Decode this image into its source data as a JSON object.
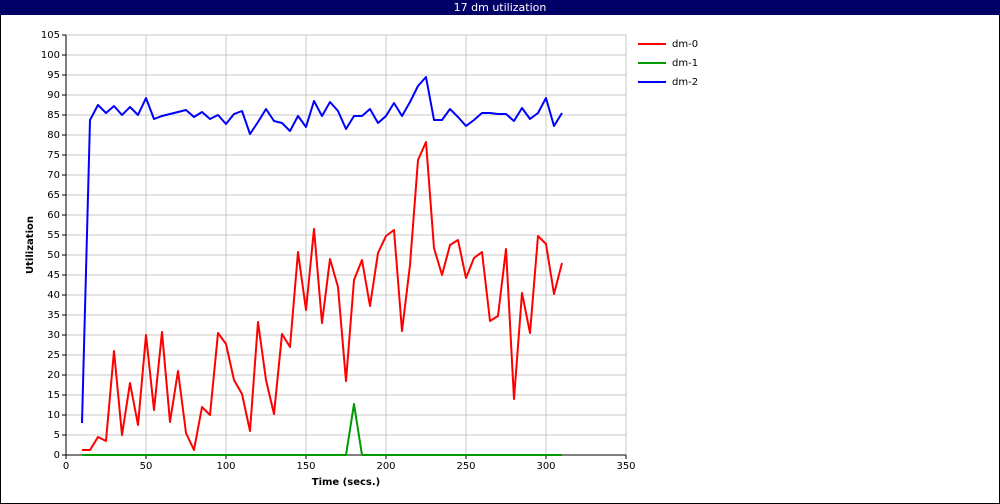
{
  "chart_data": {
    "type": "line",
    "title": "17 dm utilization",
    "x_label": "Time (secs.)",
    "y_label": "Utilization",
    "x": [
      10,
      15,
      20,
      25,
      30,
      35,
      40,
      45,
      50,
      55,
      60,
      65,
      70,
      75,
      80,
      85,
      90,
      95,
      100,
      105,
      110,
      115,
      120,
      125,
      130,
      135,
      140,
      145,
      150,
      155,
      160,
      165,
      170,
      175,
      180,
      185,
      190,
      195,
      200,
      205,
      210,
      215,
      220,
      225,
      230,
      235,
      240,
      245,
      250,
      255,
      260,
      265,
      270,
      275,
      280,
      285,
      290,
      295,
      300,
      305,
      310
    ],
    "series": [
      {
        "name": "dm-0",
        "color": "#ff0000",
        "values": [
          1.25,
          1.25,
          4.5,
          3.5,
          26,
          5,
          18,
          7.5,
          30,
          11.25,
          30.75,
          8.25,
          21,
          5.5,
          1.25,
          12,
          10,
          30.5,
          27.75,
          18.75,
          15.25,
          6,
          33.25,
          18.75,
          10.25,
          30.25,
          27,
          50.75,
          36.25,
          56.5,
          33,
          49,
          42,
          18.5,
          43.75,
          48.75,
          37.25,
          50.5,
          54.75,
          56.25,
          31,
          47.5,
          73.75,
          78.25,
          51.75,
          45,
          52.5,
          53.75,
          44.25,
          49.25,
          50.75,
          33.5,
          34.75,
          51.5,
          14,
          40.5,
          30.5,
          54.75,
          52.75,
          40.25,
          48
        ]
      },
      {
        "name": "dm-1",
        "color": "#009900",
        "values": [
          0,
          0,
          0,
          0,
          0,
          0,
          0,
          0,
          0,
          0,
          0,
          0,
          0,
          0,
          0,
          0,
          0,
          0,
          0,
          0,
          0,
          0,
          0,
          0,
          0,
          0,
          0,
          0,
          0,
          0,
          0,
          0,
          0,
          0,
          12.75,
          0,
          0,
          0,
          0,
          0,
          0,
          0,
          0,
          0,
          0,
          0,
          0,
          0,
          0,
          0,
          0,
          0,
          0,
          0,
          0,
          0,
          0,
          0,
          0,
          0,
          0
        ]
      },
      {
        "name": "dm-2",
        "color": "#0000ff",
        "values": [
          8,
          83.75,
          87.5,
          85.5,
          87.25,
          85,
          87,
          85,
          89.25,
          84,
          84.75,
          85.25,
          85.75,
          86.25,
          84.5,
          85.75,
          84,
          85,
          82.75,
          85.25,
          86,
          80.25,
          83.25,
          86.5,
          83.5,
          83,
          81,
          84.75,
          82,
          88.5,
          84.75,
          88.25,
          86,
          81.5,
          84.75,
          84.75,
          86.5,
          83,
          84.75,
          88,
          84.75,
          88.25,
          92.25,
          94.5,
          83.75,
          83.75,
          86.5,
          84.5,
          82.25,
          83.75,
          85.5,
          85.5,
          85.25,
          85.25,
          83.5,
          86.75,
          84,
          85.5,
          89.25,
          82.25,
          85.5
        ]
      }
    ],
    "xlim": [
      0,
      350
    ],
    "xticks": [
      0,
      50,
      100,
      150,
      200,
      250,
      300,
      350
    ],
    "ylim": [
      0,
      105
    ],
    "yticks": [
      0,
      5,
      10,
      15,
      20,
      25,
      30,
      35,
      40,
      45,
      50,
      55,
      60,
      65,
      70,
      75,
      80,
      85,
      90,
      95,
      100,
      105
    ],
    "grid": true,
    "legend": "right"
  }
}
